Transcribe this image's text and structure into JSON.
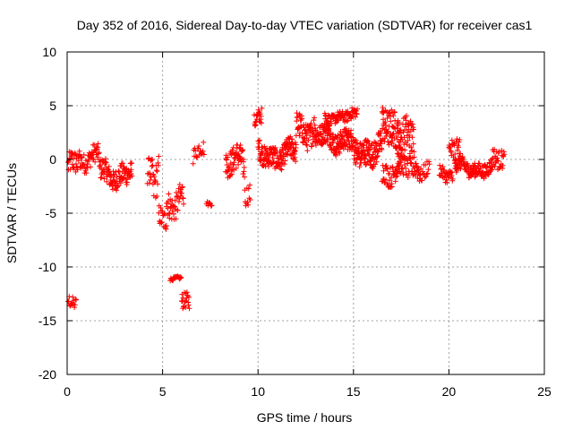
{
  "chart_data": {
    "type": "scatter",
    "title": "Day 352 of 2016, Sidereal Day-to-day VTEC variation (SDTVAR) for receiver cas1",
    "xlabel": "GPS time / hours",
    "ylabel": "SDTVAR / TECUs",
    "xlim": [
      0,
      25
    ],
    "ylim": [
      -20,
      10
    ],
    "xticks": [
      "0",
      "5",
      "10",
      "15",
      "20",
      "25"
    ],
    "yticks": [
      "-20",
      "-15",
      "-10",
      "-5",
      "0",
      "5",
      "10"
    ],
    "grid": true,
    "marker": "+",
    "color": "#ff0000",
    "series": [
      {
        "name": "cas1",
        "segments": [
          {
            "t0": 0.05,
            "t1": 0.6,
            "base": -0.8,
            "range": 2.2,
            "step": 0.02
          },
          {
            "t0": 0.05,
            "t1": 0.5,
            "base": -13.5,
            "range": 1.2,
            "step": 0.03
          },
          {
            "t0": 0.6,
            "t1": 1.7,
            "base": 0.3,
            "range": 1.8,
            "step": 0.02
          },
          {
            "t0": 1.7,
            "t1": 3.4,
            "base": -1.3,
            "range": 2.0,
            "step": 0.015
          },
          {
            "t0": 4.2,
            "t1": 4.5,
            "base": -0.8,
            "range": 2.5,
            "step": 0.02
          },
          {
            "t0": 4.5,
            "t1": 4.8,
            "base": -2.5,
            "range": 3.5,
            "step": 0.02
          },
          {
            "t0": 4.8,
            "t1": 5.2,
            "base": -5.5,
            "range": 2.0,
            "step": 0.02
          },
          {
            "t0": 5.2,
            "t1": 6.1,
            "base": -3.8,
            "range": 2.5,
            "step": 0.02
          },
          {
            "t0": 5.4,
            "t1": 6.0,
            "base": -11.1,
            "range": 0.3,
            "step": 0.03
          },
          {
            "t0": 6.0,
            "t1": 6.4,
            "base": -13.2,
            "range": 1.5,
            "step": 0.02
          },
          {
            "t0": 6.6,
            "t1": 7.2,
            "base": 0.8,
            "range": 1.5,
            "step": 0.03
          },
          {
            "t0": 7.3,
            "t1": 7.6,
            "base": -4.2,
            "range": 0.4,
            "step": 0.04
          },
          {
            "t0": 8.3,
            "t1": 9.3,
            "base": -0.5,
            "range": 2.5,
            "step": 0.015
          },
          {
            "t0": 9.3,
            "t1": 9.6,
            "base": -3.0,
            "range": 2.0,
            "step": 0.03
          },
          {
            "t0": 9.8,
            "t1": 10.2,
            "base": 3.5,
            "range": 1.5,
            "step": 0.02
          },
          {
            "t0": 10.0,
            "t1": 12.0,
            "base": 0.5,
            "range": 2.0,
            "step": 0.012
          },
          {
            "t0": 12.0,
            "t1": 13.0,
            "base": 3.0,
            "range": 2.5,
            "step": 0.015
          },
          {
            "t0": 13.0,
            "t1": 15.0,
            "base": 2.0,
            "range": 2.0,
            "step": 0.012
          },
          {
            "t0": 13.5,
            "t1": 15.2,
            "base": 4.0,
            "range": 1.0,
            "step": 0.02
          },
          {
            "t0": 15.0,
            "t1": 16.5,
            "base": 1.0,
            "range": 2.5,
            "step": 0.012
          },
          {
            "t0": 16.5,
            "t1": 17.5,
            "base": 3.0,
            "range": 3.5,
            "step": 0.012
          },
          {
            "t0": 17.3,
            "t1": 18.2,
            "base": 1.5,
            "range": 3.5,
            "step": 0.015
          },
          {
            "t0": 16.5,
            "t1": 18.5,
            "base": -1.0,
            "range": 2.0,
            "step": 0.02
          },
          {
            "t0": 18.5,
            "t1": 19.0,
            "base": -1.0,
            "range": 1.5,
            "step": 0.03
          },
          {
            "t0": 19.5,
            "t1": 20.2,
            "base": -1.2,
            "range": 1.2,
            "step": 0.02
          },
          {
            "t0": 20.0,
            "t1": 20.6,
            "base": 0.8,
            "range": 2.5,
            "step": 0.02
          },
          {
            "t0": 20.3,
            "t1": 22.3,
            "base": -0.8,
            "range": 1.3,
            "step": 0.015
          },
          {
            "t0": 22.3,
            "t1": 22.9,
            "base": 0.0,
            "range": 1.8,
            "step": 0.02
          }
        ]
      }
    ]
  }
}
